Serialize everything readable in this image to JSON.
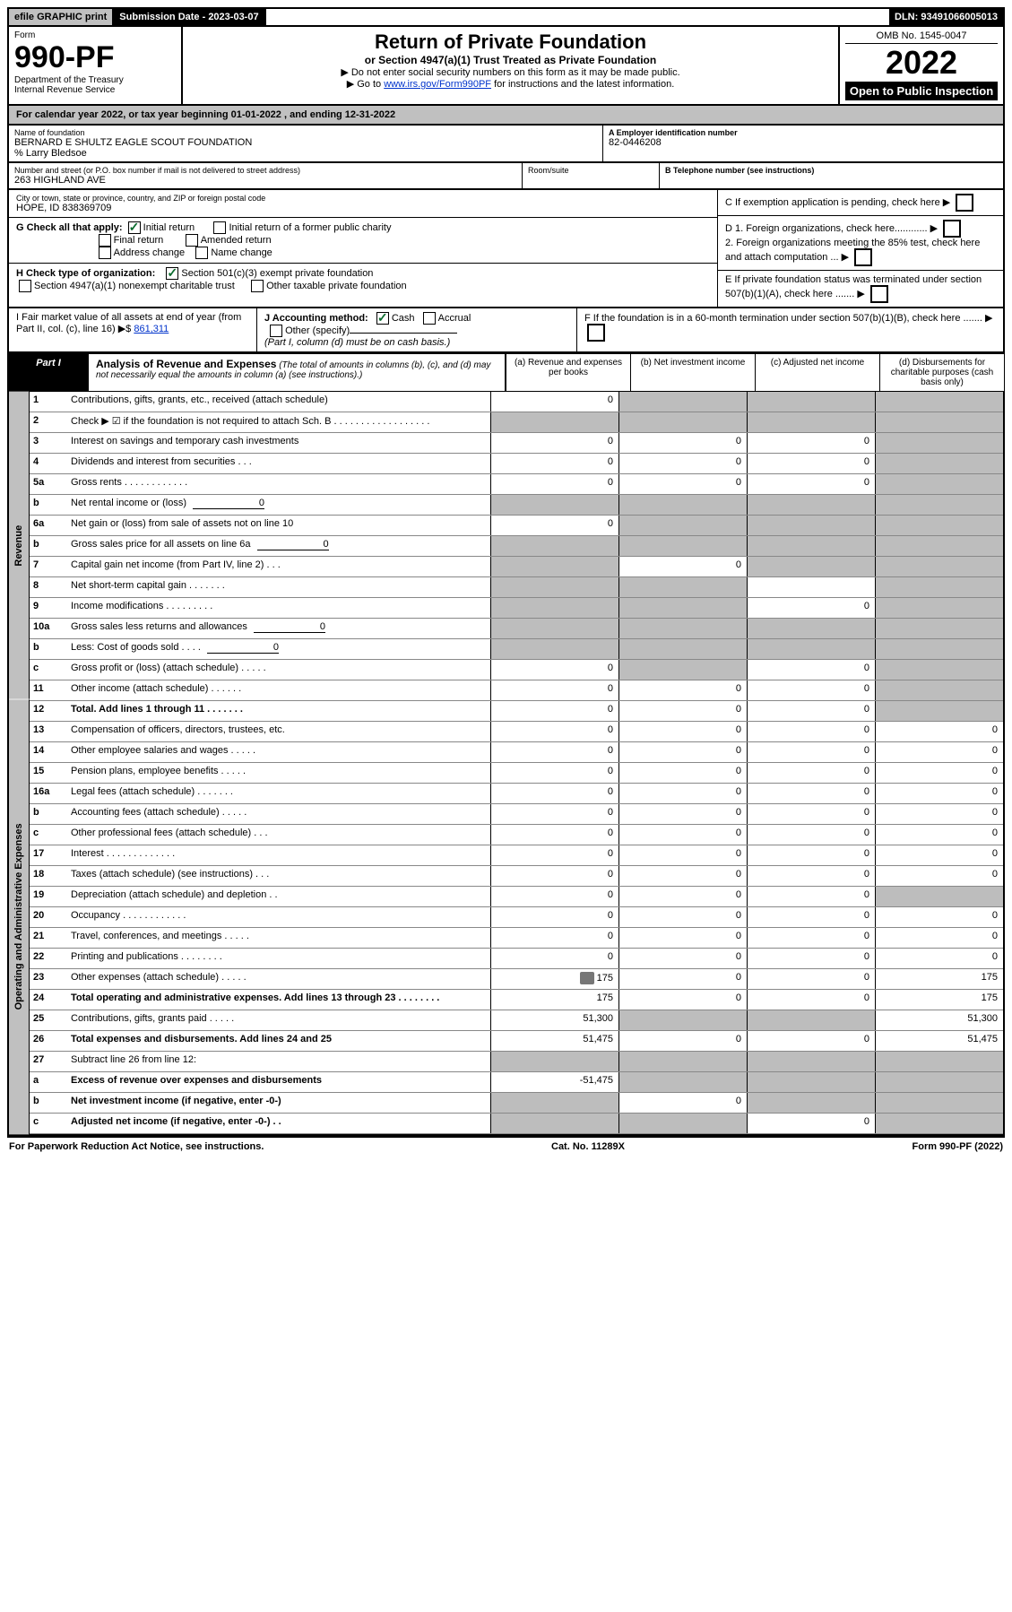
{
  "colors": {
    "header_gray": "#c0c0c0",
    "black": "#000000",
    "white": "#ffffff",
    "link": "#0033cc",
    "shade": "#bdbdbd",
    "check_green": "#0a6b2d"
  },
  "topbar": {
    "efile": "efile GRAPHIC print",
    "subdate_label": "Submission Date - 2023-03-07",
    "dln": "DLN: 93491066005013"
  },
  "header": {
    "form_word": "Form",
    "form_no": "990-PF",
    "dept": "Department of the Treasury",
    "irs": "Internal Revenue Service",
    "title": "Return of Private Foundation",
    "subtitle": "or Section 4947(a)(1) Trust Treated as Private Foundation",
    "note1": "Do not enter social security numbers on this form as it may be made public.",
    "note2_prefix": "Go to ",
    "note2_link": "www.irs.gov/Form990PF",
    "note2_suffix": " for instructions and the latest information.",
    "omb": "OMB No. 1545-0047",
    "year": "2022",
    "open": "Open to Public Inspection"
  },
  "cal_year": "For calendar year 2022, or tax year beginning 01-01-2022           , and ending 12-31-2022",
  "info": {
    "name_lbl": "Name of foundation",
    "name": "BERNARD E SHULTZ EAGLE SCOUT FOUNDATION",
    "co": "% Larry Bledsoe",
    "addr_lbl": "Number and street (or P.O. box number if mail is not delivered to street address)",
    "addr": "263 HIGHLAND AVE",
    "room_lbl": "Room/suite",
    "city_lbl": "City or town, state or province, country, and ZIP or foreign postal code",
    "city": "HOPE, ID 838369709",
    "a_lbl": "A Employer identification number",
    "a_val": "82-0446208",
    "b_lbl": "B Telephone number (see instructions)",
    "c_lbl": "C If exemption application is pending, check here",
    "d1": "D 1. Foreign organizations, check here............",
    "d2": "2. Foreign organizations meeting the 85% test, check here and attach computation ...",
    "e": "E  If private foundation status was terminated under section 507(b)(1)(A), check here .......",
    "f": "F  If the foundation is in a 60-month termination under section 507(b)(1)(B), check here .......",
    "g_lbl": "G Check all that apply:",
    "g_opts": {
      "initial": "Initial return",
      "initial_former": "Initial return of a former public charity",
      "final": "Final return",
      "amended": "Amended return",
      "addr_change": "Address change",
      "name_change": "Name change"
    },
    "h_lbl": "H Check type of organization:",
    "h_501c3": "Section 501(c)(3) exempt private foundation",
    "h_4947": "Section 4947(a)(1) nonexempt charitable trust",
    "h_other": "Other taxable private foundation",
    "i_lbl": "I Fair market value of all assets at end of year (from Part II, col. (c), line 16) ▶$",
    "i_val": "861,311",
    "j_lbl": "J Accounting method:",
    "j_cash": "Cash",
    "j_accrual": "Accrual",
    "j_other": "Other (specify)",
    "j_note": "(Part I, column (d) must be on cash basis.)"
  },
  "part1": {
    "label": "Part I",
    "title": "Analysis of Revenue and Expenses",
    "title_note": " (The total of amounts in columns (b), (c), and (d) may not necessarily equal the amounts in column (a) (see instructions).)",
    "col_a": "(a)  Revenue and expenses per books",
    "col_b": "(b)  Net investment income",
    "col_c": "(c)  Adjusted net income",
    "col_d": "(d)  Disbursements for charitable purposes (cash basis only)"
  },
  "vtabs": {
    "rev": "Revenue",
    "exp": "Operating and Administrative Expenses"
  },
  "lines": {
    "1": {
      "desc": "Contributions, gifts, grants, etc., received (attach schedule)",
      "a": "0"
    },
    "2": {
      "desc": "Check ▶ ☑ if the foundation is not required to attach Sch. B  . . . . . . . . . . . . . . . . . ."
    },
    "3": {
      "desc": "Interest on savings and temporary cash investments",
      "a": "0",
      "b": "0",
      "c": "0"
    },
    "4": {
      "desc": "Dividends and interest from securities  . . .",
      "a": "0",
      "b": "0",
      "c": "0"
    },
    "5a": {
      "desc": "Gross rents  . . . . . . . . . . . .",
      "a": "0",
      "b": "0",
      "c": "0"
    },
    "5b": {
      "desc": "Net rental income or (loss)",
      "inline": "0"
    },
    "6a": {
      "desc": "Net gain or (loss) from sale of assets not on line 10",
      "a": "0"
    },
    "6b": {
      "desc": "Gross sales price for all assets on line 6a",
      "inline": "0"
    },
    "7": {
      "desc": "Capital gain net income (from Part IV, line 2)  . . .",
      "b": "0"
    },
    "8": {
      "desc": "Net short-term capital gain  . . . . . . ."
    },
    "9": {
      "desc": "Income modifications  . . . . . . . . .",
      "c": "0"
    },
    "10a": {
      "desc": "Gross sales less returns and allowances",
      "inline": "0"
    },
    "10b": {
      "desc": "Less: Cost of goods sold  . . . .",
      "inline": "0"
    },
    "10c": {
      "desc": "Gross profit or (loss) (attach schedule)  . . . . .",
      "a": "0",
      "c": "0"
    },
    "11": {
      "desc": "Other income (attach schedule)  . . . . . .",
      "a": "0",
      "b": "0",
      "c": "0"
    },
    "12": {
      "desc": "Total. Add lines 1 through 11  . . . . . . .",
      "bold": true,
      "a": "0",
      "b": "0",
      "c": "0"
    },
    "13": {
      "desc": "Compensation of officers, directors, trustees, etc.",
      "a": "0",
      "b": "0",
      "c": "0",
      "d": "0"
    },
    "14": {
      "desc": "Other employee salaries and wages  . . . . .",
      "a": "0",
      "b": "0",
      "c": "0",
      "d": "0"
    },
    "15": {
      "desc": "Pension plans, employee benefits  . . . . .",
      "a": "0",
      "b": "0",
      "c": "0",
      "d": "0"
    },
    "16a": {
      "desc": "Legal fees (attach schedule)  . . . . . . .",
      "a": "0",
      "b": "0",
      "c": "0",
      "d": "0"
    },
    "16b": {
      "desc": "Accounting fees (attach schedule)  . . . . .",
      "a": "0",
      "b": "0",
      "c": "0",
      "d": "0"
    },
    "16c": {
      "desc": "Other professional fees (attach schedule)  . . .",
      "a": "0",
      "b": "0",
      "c": "0",
      "d": "0"
    },
    "17": {
      "desc": "Interest  . . . . . . . . . . . . .",
      "a": "0",
      "b": "0",
      "c": "0",
      "d": "0"
    },
    "18": {
      "desc": "Taxes (attach schedule) (see instructions)  . . .",
      "a": "0",
      "b": "0",
      "c": "0",
      "d": "0"
    },
    "19": {
      "desc": "Depreciation (attach schedule) and depletion  . .",
      "a": "0",
      "b": "0",
      "c": "0"
    },
    "20": {
      "desc": "Occupancy  . . . . . . . . . . . .",
      "a": "0",
      "b": "0",
      "c": "0",
      "d": "0"
    },
    "21": {
      "desc": "Travel, conferences, and meetings  . . . . .",
      "a": "0",
      "b": "0",
      "c": "0",
      "d": "0"
    },
    "22": {
      "desc": "Printing and publications  . . . . . . . .",
      "a": "0",
      "b": "0",
      "c": "0",
      "d": "0"
    },
    "23": {
      "desc": "Other expenses (attach schedule)  . . . . .",
      "a": "175",
      "b": "0",
      "c": "0",
      "d": "175",
      "attach": true
    },
    "24": {
      "desc": "Total operating and administrative expenses. Add lines 13 through 23  . . . . . . . .",
      "bold": true,
      "a": "175",
      "b": "0",
      "c": "0",
      "d": "175"
    },
    "25": {
      "desc": "Contributions, gifts, grants paid  . . . . .",
      "a": "51,300",
      "d": "51,300"
    },
    "26": {
      "desc": "Total expenses and disbursements. Add lines 24 and 25",
      "bold": true,
      "a": "51,475",
      "b": "0",
      "c": "0",
      "d": "51,475"
    },
    "27": {
      "desc": "Subtract line 26 from line 12:"
    },
    "27a": {
      "desc": "Excess of revenue over expenses and disbursements",
      "bold": true,
      "a": "-51,475"
    },
    "27b": {
      "desc": "Net investment income (if negative, enter -0-)",
      "bold": true,
      "b": "0"
    },
    "27c": {
      "desc": "Adjusted net income (if negative, enter -0-)  . .",
      "bold": true,
      "c": "0"
    }
  },
  "footer": {
    "left": "For Paperwork Reduction Act Notice, see instructions.",
    "mid": "Cat. No. 11289X",
    "right": "Form 990-PF (2022)"
  }
}
